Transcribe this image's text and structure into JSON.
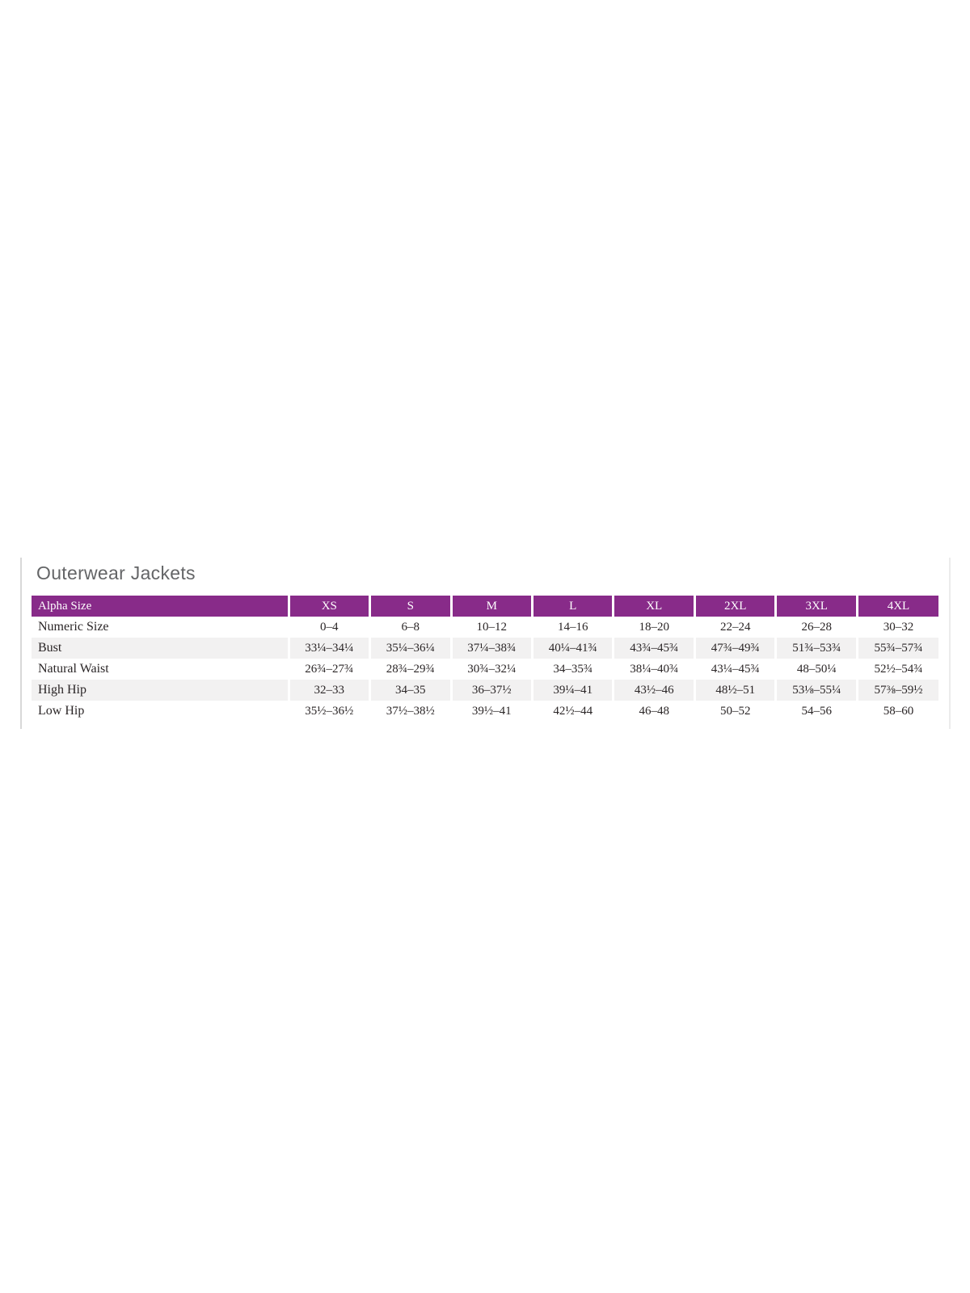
{
  "section": {
    "title": "Outerwear Jackets"
  },
  "table": {
    "header": [
      "Alpha Size",
      "XS",
      "S",
      "M",
      "L",
      "XL",
      "2XL",
      "3XL",
      "4XL"
    ],
    "rows": [
      {
        "label": "Numeric Size",
        "values": [
          "0–4",
          "6–8",
          "10–12",
          "14–16",
          "18–20",
          "22–24",
          "26–28",
          "30–32"
        ]
      },
      {
        "label": "Bust",
        "values": [
          "33¼–34¼",
          "35¼–36¼",
          "37¼–38¾",
          "40¼–41¾",
          "43¾–45¾",
          "47¾–49¾",
          "51¾–53¾",
          "55¾–57¾"
        ]
      },
      {
        "label": "Natural Waist",
        "values": [
          "26¾–27¾",
          "28¾–29¾",
          "30¾–32¼",
          "34–35¾",
          "38¼–40¾",
          "43¼–45¾",
          "48–50¼",
          "52½–54¾"
        ]
      },
      {
        "label": "High Hip",
        "values": [
          "32–33",
          "34–35",
          "36–37½",
          "39¼–41",
          "43½–46",
          "48½–51",
          "53⅛–55¼",
          "57⅜–59½"
        ]
      },
      {
        "label": "Low Hip",
        "values": [
          "35½–36½",
          "37½–38½",
          "39½–41",
          "42½–44",
          "46–48",
          "50–52",
          "54–56",
          "58–60"
        ]
      }
    ]
  },
  "colors": {
    "header_bg": "#882b89",
    "header_text": "#ffffff",
    "alt_row_bg": "#f2f1f1",
    "title_text": "#646567",
    "body_text": "#2a2526",
    "left_border": "#d8d8d8",
    "right_border": "#ececec"
  }
}
